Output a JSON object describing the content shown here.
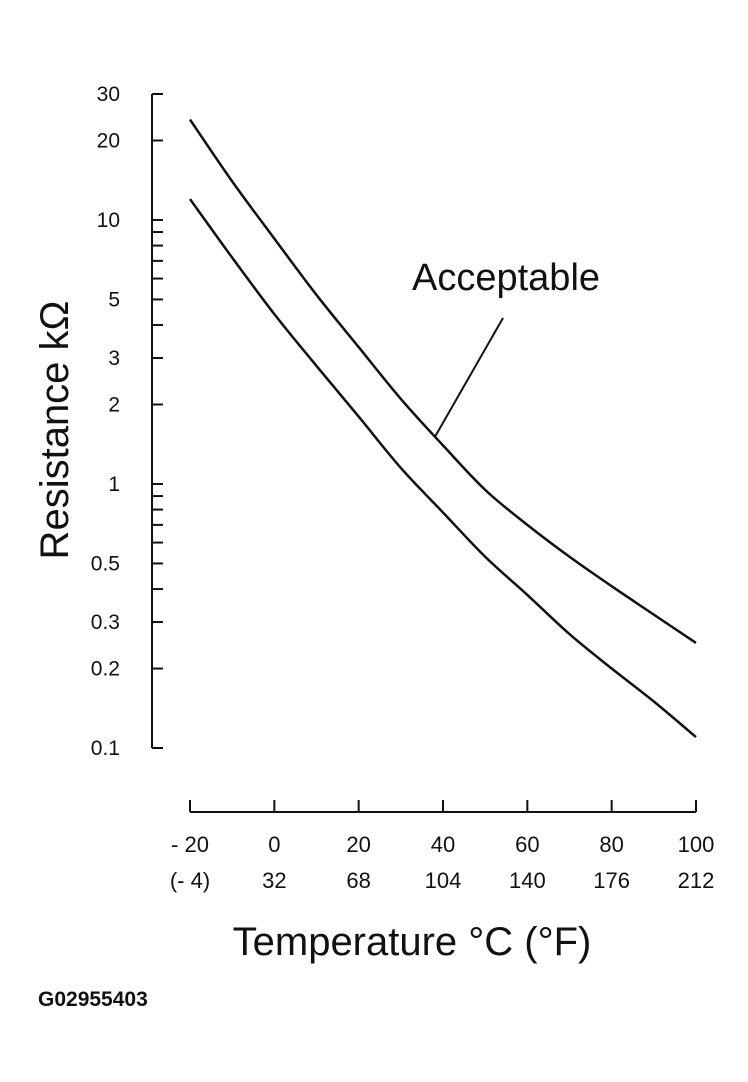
{
  "figure_id": "G02955403",
  "chart_data": {
    "type": "line",
    "ylabel": "Resistance kΩ",
    "xlabel": "Temperature °C (°F)",
    "y_scale": "log",
    "ylim": [
      0.1,
      30
    ],
    "xlim": [
      -20,
      100
    ],
    "y_tick_labels": [
      "30",
      "20",
      "10",
      "5",
      "3",
      "2",
      "1",
      "0.5",
      "0.3",
      "0.2",
      "0.1"
    ],
    "y_tick_values": [
      30,
      20,
      10,
      5,
      3,
      2,
      1,
      0.5,
      0.3,
      0.2,
      0.1
    ],
    "y_minor_ticks": [
      9,
      8,
      7,
      6,
      4,
      0.9,
      0.8,
      0.7,
      0.6,
      0.4
    ],
    "x_ticks": [
      {
        "c": "- 20",
        "f": "(- 4)",
        "value": -20
      },
      {
        "c": "0",
        "f": "32",
        "value": 0
      },
      {
        "c": "20",
        "f": "68",
        "value": 20
      },
      {
        "c": "40",
        "f": "104",
        "value": 40
      },
      {
        "c": "60",
        "f": "140",
        "value": 60
      },
      {
        "c": "80",
        "f": "176",
        "value": 80
      },
      {
        "c": "100",
        "f": "212",
        "value": 100
      }
    ],
    "annotation": {
      "text": "Acceptable",
      "points_to": {
        "x": 38,
        "y": 1.5
      }
    },
    "grid": false,
    "series": [
      {
        "x": [
          -20,
          -10,
          0,
          10,
          20,
          30,
          40,
          50,
          60,
          70,
          80,
          90,
          100
        ],
        "values": [
          24,
          14,
          8.5,
          5.2,
          3.3,
          2.1,
          1.4,
          0.95,
          0.7,
          0.53,
          0.41,
          0.32,
          0.25
        ]
      },
      {
        "x": [
          -20,
          -10,
          0,
          10,
          20,
          30,
          40,
          50,
          60,
          70,
          80,
          90,
          100
        ],
        "values": [
          12,
          7.2,
          4.4,
          2.8,
          1.8,
          1.15,
          0.78,
          0.53,
          0.38,
          0.27,
          0.2,
          0.15,
          0.11
        ]
      }
    ]
  }
}
